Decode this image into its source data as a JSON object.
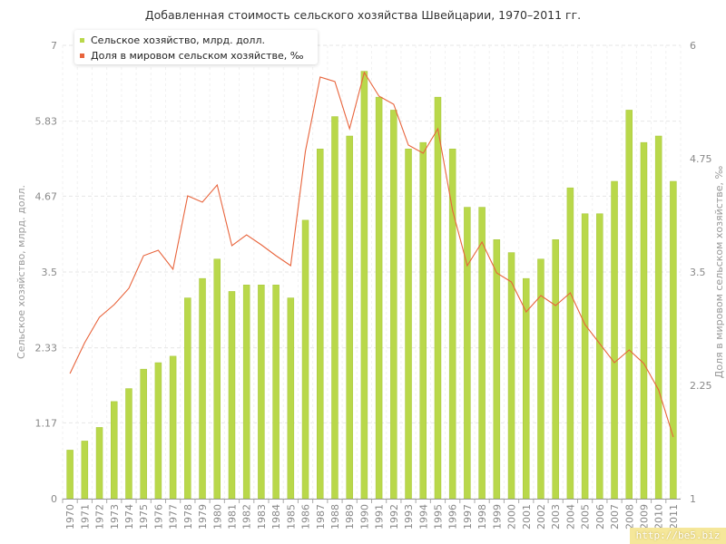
{
  "chart_data": {
    "type": "bar",
    "title": "Добавленная стоимость сельского хозяйства Швейцарии, 1970–2011 гг.",
    "categories": [
      "1970",
      "1971",
      "1972",
      "1973",
      "1974",
      "1975",
      "1976",
      "1977",
      "1978",
      "1979",
      "1980",
      "1981",
      "1982",
      "1983",
      "1984",
      "1985",
      "1986",
      "1987",
      "1988",
      "1989",
      "1990",
      "1991",
      "1992",
      "1993",
      "1994",
      "1995",
      "1996",
      "1997",
      "1998",
      "1999",
      "2000",
      "2001",
      "2002",
      "2003",
      "2004",
      "2005",
      "2006",
      "2007",
      "2008",
      "2009",
      "2010",
      "2011"
    ],
    "series": [
      {
        "name": "Сельское хозяйство, млрд. долл.",
        "type": "bar",
        "axis": "left",
        "color": "#b9d84a",
        "values": [
          0.75,
          0.89,
          1.1,
          1.5,
          1.7,
          2.0,
          2.1,
          2.2,
          3.1,
          3.4,
          3.7,
          3.2,
          3.3,
          3.3,
          3.3,
          3.1,
          4.3,
          5.4,
          5.9,
          5.6,
          6.6,
          6.2,
          6.0,
          5.4,
          5.5,
          6.2,
          5.4,
          4.5,
          4.5,
          4.0,
          3.8,
          3.4,
          3.7,
          4.0,
          4.8,
          4.4,
          4.4,
          4.9,
          6.0,
          5.5,
          5.6,
          4.9
        ]
      },
      {
        "name": "Доля в мировом сельском хозяйстве, ‰",
        "type": "line",
        "axis": "right",
        "color": "#e8643c",
        "values": [
          2.38,
          2.72,
          3.0,
          3.14,
          3.32,
          3.68,
          3.74,
          3.53,
          4.34,
          4.27,
          4.46,
          3.79,
          3.91,
          3.8,
          3.68,
          3.57,
          4.83,
          5.65,
          5.6,
          5.08,
          5.7,
          5.44,
          5.35,
          4.9,
          4.81,
          5.08,
          4.18,
          3.57,
          3.83,
          3.49,
          3.39,
          3.06,
          3.24,
          3.13,
          3.27,
          2.92,
          2.71,
          2.5,
          2.64,
          2.49,
          2.2,
          1.68
        ]
      }
    ],
    "ylabel": "Сельское хозяйство, млрд. долл.",
    "y2label": "Доля в мировом сельском хозяйстве, ‰",
    "ylim": [
      0,
      7
    ],
    "y2lim": [
      1,
      6
    ],
    "yticks": [
      "0",
      "1.17",
      "2.33",
      "3.5",
      "4.67",
      "5.83",
      "7"
    ],
    "y2ticks": [
      "1",
      "2.25",
      "3.5",
      "4.75",
      "6"
    ],
    "grid": true,
    "legend": "top-left"
  },
  "watermark": "http://be5.biz"
}
